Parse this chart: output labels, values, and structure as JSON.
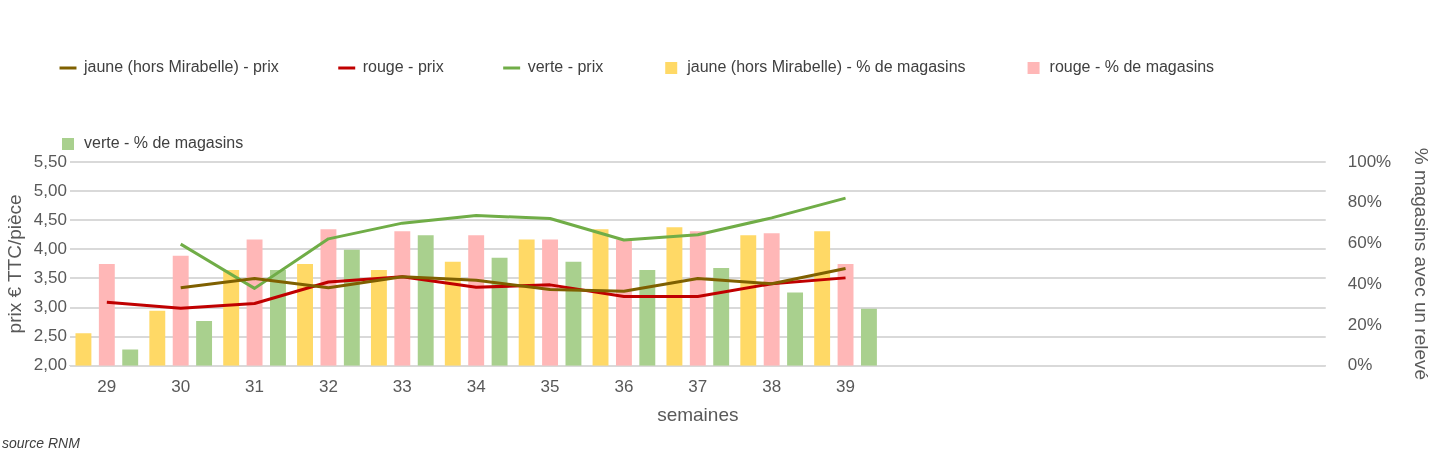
{
  "chart_data": {
    "type": "bar",
    "xlabel": "semaines",
    "ylabel": "prix € TTC/pièce",
    "y2label": "% magasins avec un relevé",
    "categories": [
      "29",
      "30",
      "31",
      "32",
      "33",
      "34",
      "35",
      "36",
      "37",
      "38",
      "39",
      null,
      null,
      null,
      null,
      null,
      null
    ],
    "series": [
      {
        "name": "jaune (hors Mirabelle) - % de magasins",
        "color": "#ffd966",
        "axis": "y2",
        "values": [
          16,
          27,
          47,
          50,
          47,
          51,
          62,
          67,
          68,
          64,
          66,
          null,
          null,
          null,
          null,
          null,
          null
        ]
      },
      {
        "name": "rouge - % de magasins",
        "color": "#ffb7b7",
        "axis": "y2",
        "values": [
          50,
          54,
          62,
          67,
          66,
          64,
          62,
          62,
          66,
          65,
          50,
          null,
          null,
          null,
          null,
          null,
          null
        ]
      },
      {
        "name": "verte - % de magasins",
        "color": "#a9d08e",
        "axis": "y2",
        "values": [
          8,
          22,
          47,
          57,
          64,
          53,
          51,
          47,
          48,
          36,
          28,
          null,
          null,
          null,
          null,
          null,
          null
        ]
      },
      {
        "name": "jaune (hors Mirabelle) - prix",
        "type": "line",
        "color": "#7f6000",
        "values": [
          null,
          3.34,
          3.5,
          3.34,
          3.53,
          3.47,
          3.31,
          3.28,
          3.5,
          3.41,
          3.67,
          null,
          null,
          null,
          null,
          null,
          null
        ]
      },
      {
        "name": "rouge - prix",
        "type": "line",
        "color": "#c00000",
        "values": [
          3.09,
          2.99,
          3.07,
          3.44,
          3.53,
          3.35,
          3.39,
          3.19,
          3.19,
          3.41,
          3.51,
          null,
          null,
          null,
          null,
          null,
          null
        ]
      },
      {
        "name": "verte - prix",
        "type": "line",
        "color": "#70ad47",
        "values": [
          null,
          4.09,
          3.33,
          4.18,
          4.45,
          4.58,
          4.53,
          4.16,
          4.25,
          4.54,
          4.88,
          null,
          null,
          null,
          null,
          null,
          null
        ]
      }
    ],
    "ylim": [
      2,
      5.5
    ],
    "yticks": [
      {
        "value": 2,
        "label": "2,00"
      },
      {
        "value": 2.5,
        "label": "2,50"
      },
      {
        "value": 3,
        "label": "3,00"
      },
      {
        "value": 3.5,
        "label": "3,50"
      },
      {
        "value": 4,
        "label": "4,00"
      },
      {
        "value": 4.5,
        "label": "4,50"
      },
      {
        "value": 5,
        "label": "5,00"
      },
      {
        "value": 5.5,
        "label": "5,50"
      }
    ],
    "y2lim": [
      0,
      100
    ],
    "y2ticks": [
      {
        "value": 0,
        "label": "0%"
      },
      {
        "value": 20,
        "label": "20%"
      },
      {
        "value": 40,
        "label": "40%"
      },
      {
        "value": 60,
        "label": "60%"
      },
      {
        "value": 80,
        "label": "80%"
      },
      {
        "value": 100,
        "label": "100%"
      }
    ],
    "grid": "y",
    "legend": "top",
    "marker": "none",
    "line_style": "solid",
    "annotations": [
      "source RNM"
    ]
  }
}
